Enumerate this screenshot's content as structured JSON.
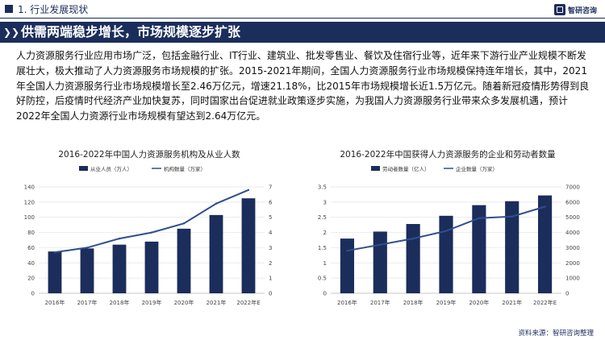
{
  "header": {
    "section_title": "1. 行业发展现状",
    "logo_text": "智研咨询"
  },
  "banner": {
    "title": "供需两端稳步增长，市场规模逐步扩张"
  },
  "paragraph": "人力资源服务行业应用市场广泛，包括金融行业、IT行业、建筑业、批发零售业、餐饮及住宿行业等，近年来下游行业产业规模不断发展壮大，极大推动了人力资源服务市场规模的扩张。2015-2021年期间，全国人力资源服务行业市场规模保持连年增长，其中，2021年全国人力资源服务行业市场规模增长至2.46万亿元，增速21.18%，比2015年市场规模增长近1.5万亿元。随着新冠疫情形势得到良好防控，后疫情时代经济产业加快复苏，同时国家出台促进就业政策逐步实施，为我国人力资源服务行业带来众多发展机遇，预计2022年全国人力资源行业市场规模有望达到2.64万亿元。",
  "source": "资料来源：智研咨询整理",
  "colors": {
    "navy": "#1b2d5b",
    "bar": "#1b2d5b",
    "line": "#2f4f8f"
  },
  "chart_data": [
    {
      "type": "bar",
      "title": "2016-2022年中国人力资源服务机构及从业人数",
      "categories": [
        "2016年",
        "2017年",
        "2018年",
        "2019年",
        "2020年",
        "2021年",
        "2022年E"
      ],
      "series": [
        {
          "name": "从业人员（万人）",
          "type": "bar",
          "axis": "left",
          "values": [
            55,
            59,
            64,
            68,
            85,
            103,
            125
          ]
        },
        {
          "name": "机构数量（万家）",
          "type": "line",
          "axis": "right",
          "values": [
            2.7,
            3.0,
            3.6,
            4.0,
            4.6,
            5.9,
            6.8
          ]
        }
      ],
      "ylim": [
        0,
        140
      ],
      "yticks": [
        0,
        20,
        40,
        60,
        80,
        100,
        120,
        140
      ],
      "y2lim": [
        0,
        7
      ],
      "y2ticks": [
        0,
        1,
        2,
        3,
        4,
        5,
        6,
        7
      ],
      "legend": "top-left",
      "grid": true
    },
    {
      "type": "bar",
      "title": "2016-2022年中国获得人力资源服务的企业和劳动者数量",
      "categories": [
        "2016年",
        "2017年",
        "2018年",
        "2019年",
        "2020年",
        "2021年",
        "2022年E"
      ],
      "series": [
        {
          "name": "劳动者数量（亿人）",
          "type": "bar",
          "axis": "left",
          "values": [
            1.8,
            2.03,
            2.28,
            2.55,
            2.9,
            3.03,
            3.22
          ]
        },
        {
          "name": "企业数量（万家）",
          "type": "line",
          "axis": "right",
          "values": [
            2800,
            3200,
            3600,
            4100,
            4950,
            5050,
            5700
          ]
        }
      ],
      "ylim": [
        0,
        3.5
      ],
      "yticks": [
        0,
        0.5,
        1,
        1.5,
        2,
        2.5,
        3,
        3.5
      ],
      "y2lim": [
        0,
        7000
      ],
      "y2ticks": [
        0,
        1000,
        2000,
        3000,
        4000,
        5000,
        6000,
        7000
      ],
      "legend": "top-left",
      "grid": true
    }
  ]
}
